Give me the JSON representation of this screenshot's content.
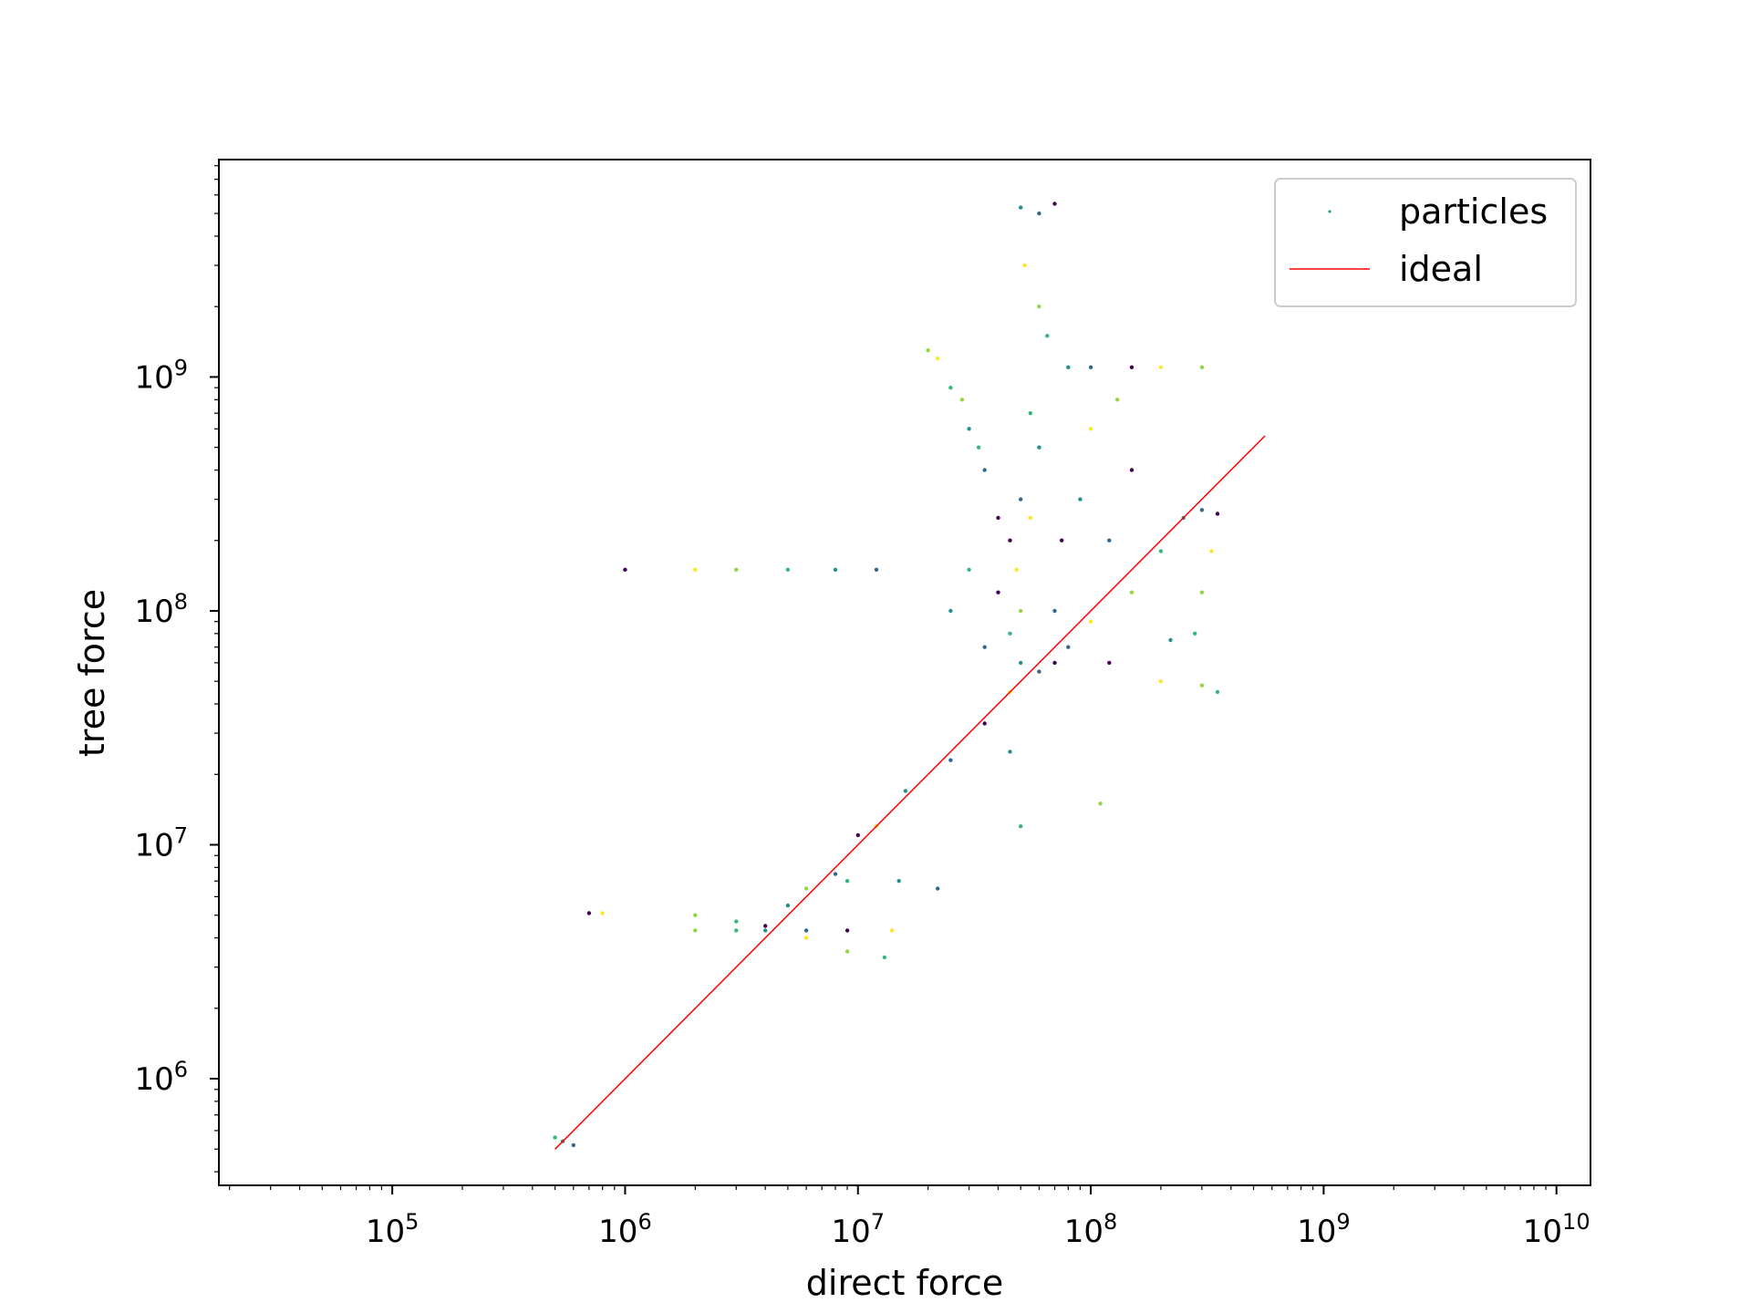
{
  "chart_data": {
    "type": "scatter",
    "title": "",
    "xlabel": "direct force",
    "ylabel": "tree force",
    "xscale": "log",
    "yscale": "log",
    "xlim": [
      18000,
      14000000000
    ],
    "ylim": [
      350000,
      8500000000
    ],
    "x_ticks": [
      {
        "value": 100000,
        "base": "10",
        "exp": "5"
      },
      {
        "value": 1000000,
        "base": "10",
        "exp": "6"
      },
      {
        "value": 10000000,
        "base": "10",
        "exp": "7"
      },
      {
        "value": 100000000,
        "base": "10",
        "exp": "8"
      },
      {
        "value": 1000000000,
        "base": "10",
        "exp": "9"
      },
      {
        "value": 10000000000,
        "base": "10",
        "exp": "10"
      }
    ],
    "y_ticks": [
      {
        "value": 1000000,
        "base": "10",
        "exp": "6"
      },
      {
        "value": 10000000,
        "base": "10",
        "exp": "7"
      },
      {
        "value": 100000000,
        "base": "10",
        "exp": "8"
      },
      {
        "value": 1000000000,
        "base": "10",
        "exp": "9"
      }
    ],
    "grid": false,
    "legend_position": "top-right",
    "colormap": [
      "#440154",
      "#31688e",
      "#21918c",
      "#35b779",
      "#90d743",
      "#fde725"
    ],
    "series": [
      {
        "name": "particles",
        "kind": "scatter",
        "color": "#21918c",
        "points": [
          [
            500000,
            560000
          ],
          [
            540000,
            540000
          ],
          [
            600000,
            520000
          ],
          [
            1000000,
            150000000
          ],
          [
            2000000,
            150000000
          ],
          [
            3000000,
            150000000
          ],
          [
            5000000,
            150000000
          ],
          [
            8000000,
            150000000
          ],
          [
            12000000,
            150000000
          ],
          [
            700000,
            5100000
          ],
          [
            800000,
            5100000
          ],
          [
            2000000,
            4300000
          ],
          [
            3000000,
            4300000
          ],
          [
            4000000,
            4300000
          ],
          [
            6000000,
            4300000
          ],
          [
            9000000,
            4300000
          ],
          [
            14000000,
            4300000
          ],
          [
            2000000,
            5000000
          ],
          [
            3000000,
            4700000
          ],
          [
            5000000,
            5500000
          ],
          [
            8000000,
            7500000
          ],
          [
            10000000,
            11000000
          ],
          [
            12000000,
            12000000
          ],
          [
            6000000,
            6500000
          ],
          [
            9000000,
            7000000
          ],
          [
            15000000,
            7000000
          ],
          [
            22000000,
            6500000
          ],
          [
            4000000,
            4500000
          ],
          [
            6000000,
            4000000
          ],
          [
            9000000,
            3500000
          ],
          [
            13000000,
            3300000
          ],
          [
            16000000,
            17000000
          ],
          [
            25000000,
            23000000
          ],
          [
            35000000,
            33000000
          ],
          [
            45000000,
            45000000
          ],
          [
            20000000,
            1300000000
          ],
          [
            25000000,
            900000000
          ],
          [
            30000000,
            600000000
          ],
          [
            35000000,
            400000000
          ],
          [
            40000000,
            250000000
          ],
          [
            22000000,
            1200000000
          ],
          [
            28000000,
            800000000
          ],
          [
            33000000,
            500000000
          ],
          [
            50000000,
            5300000000
          ],
          [
            60000000,
            5000000000
          ],
          [
            70000000,
            5500000000
          ],
          [
            52000000,
            3000000000
          ],
          [
            60000000,
            2000000000
          ],
          [
            65000000,
            1500000000
          ],
          [
            80000000,
            1100000000
          ],
          [
            100000000,
            1100000000
          ],
          [
            150000000,
            1100000000
          ],
          [
            200000000,
            1100000000
          ],
          [
            300000000,
            1100000000
          ],
          [
            55000000,
            700000000
          ],
          [
            60000000,
            500000000
          ],
          [
            50000000,
            300000000
          ],
          [
            45000000,
            200000000
          ],
          [
            48000000,
            150000000
          ],
          [
            50000000,
            100000000
          ],
          [
            45000000,
            80000000
          ],
          [
            50000000,
            60000000
          ],
          [
            60000000,
            55000000
          ],
          [
            70000000,
            60000000
          ],
          [
            100000000,
            90000000
          ],
          [
            150000000,
            120000000
          ],
          [
            200000000,
            180000000
          ],
          [
            250000000,
            250000000
          ],
          [
            300000000,
            270000000
          ],
          [
            350000000,
            260000000
          ],
          [
            330000000,
            180000000
          ],
          [
            300000000,
            120000000
          ],
          [
            280000000,
            80000000
          ],
          [
            220000000,
            75000000
          ],
          [
            80000000,
            70000000
          ],
          [
            120000000,
            60000000
          ],
          [
            200000000,
            50000000
          ],
          [
            300000000,
            48000000
          ],
          [
            350000000,
            45000000
          ],
          [
            90000000,
            300000000
          ],
          [
            120000000,
            200000000
          ],
          [
            150000000,
            400000000
          ],
          [
            100000000,
            600000000
          ],
          [
            130000000,
            800000000
          ],
          [
            30000000,
            150000000
          ],
          [
            25000000,
            100000000
          ],
          [
            35000000,
            70000000
          ],
          [
            40000000,
            120000000
          ],
          [
            55000000,
            250000000
          ],
          [
            110000000,
            15000000
          ],
          [
            50000000,
            12000000
          ],
          [
            45000000,
            25000000
          ],
          [
            70000000,
            100000000
          ],
          [
            75000000,
            200000000
          ]
        ]
      },
      {
        "name": "ideal",
        "kind": "line",
        "color": "#ff0000",
        "points": [
          [
            500000,
            500000
          ],
          [
            560000000,
            560000000
          ]
        ]
      }
    ]
  },
  "legend": [
    {
      "label": "particles",
      "kind": "point"
    },
    {
      "label": "ideal",
      "kind": "line",
      "color": "#ff0000"
    }
  ]
}
